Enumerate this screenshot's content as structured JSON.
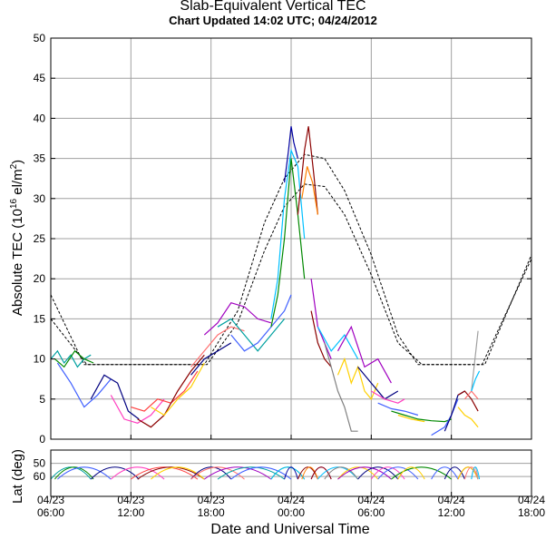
{
  "chart_data": {
    "type": "line",
    "title": "Slab-Equivalent Vertical TEC",
    "subtitle": "Chart Updated 14:02 UTC; 04/24/2012",
    "ylabel_main": "Absolute TEC (10",
    "ylabel_exp": "16",
    "ylabel_unit": " el/m",
    "ylabel_sq": "2",
    "ylabel_close": ")",
    "ylabel_lat": "Lat (deg)",
    "xlabel": "Date and Universal Time",
    "x_unit": "hours since 04/23 06:00 UTC",
    "xlim": [
      0,
      36
    ],
    "ylim": [
      0,
      50
    ],
    "y_ticks": [
      0,
      5,
      10,
      15,
      20,
      25,
      30,
      35,
      40,
      45,
      50
    ],
    "lat_ylim": [
      75,
      40
    ],
    "lat_ticks": [
      50,
      60
    ],
    "grid": true,
    "x_ticks": [
      {
        "x": 0,
        "date": "04/23",
        "time": "06:00"
      },
      {
        "x": 6,
        "date": "04/23",
        "time": "12:00"
      },
      {
        "x": 12,
        "date": "04/23",
        "time": "18:00"
      },
      {
        "x": 18,
        "date": "04/24",
        "time": "00:00"
      },
      {
        "x": 24,
        "date": "04/24",
        "time": "06:00"
      },
      {
        "x": 30,
        "date": "04/24",
        "time": "12:00"
      },
      {
        "x": 36,
        "date": "04/24",
        "time": "18:00"
      }
    ],
    "reference_curves": [
      {
        "style": "dashed",
        "x": [
          0,
          2.5,
          7,
          11.5,
          14,
          16,
          17.5,
          19,
          20.5,
          22,
          24,
          26,
          27.5,
          30,
          32.5,
          36
        ],
        "y": [
          18,
          9.3,
          9.3,
          9.3,
          16,
          27,
          32.5,
          35.5,
          35,
          31,
          23,
          13,
          9.3,
          9.3,
          9.3,
          23
        ]
      },
      {
        "style": "dashed",
        "x": [
          0,
          2.7,
          7,
          11.7,
          14,
          16,
          17.5,
          19,
          20.5,
          22,
          24,
          26,
          27.8,
          30,
          32.3,
          36
        ],
        "y": [
          15,
          9.3,
          9.3,
          9.3,
          14.5,
          23.5,
          29,
          31.8,
          31.5,
          28,
          20.5,
          12,
          9.3,
          9.3,
          9.3,
          22.5
        ]
      }
    ],
    "series": [
      {
        "color": "#00a0a0",
        "x": [
          0,
          0.5,
          1,
          1.5,
          2,
          2.5,
          3
        ],
        "y": [
          10,
          11,
          9.5,
          10.5,
          9,
          10,
          10.5
        ]
      },
      {
        "color": "#008800",
        "x": [
          0.3,
          1,
          1.8,
          2.5,
          3.2
        ],
        "y": [
          10,
          9,
          11,
          10,
          9.5
        ]
      },
      {
        "color": "#4060ff",
        "x": [
          0.5,
          1.5,
          2.5,
          3.5,
          4.5
        ],
        "y": [
          9.5,
          7,
          4,
          5.5,
          7.5
        ]
      },
      {
        "color": "#000080",
        "x": [
          3,
          4,
          5,
          5.8,
          6.6
        ],
        "y": [
          5,
          8,
          7,
          3.5,
          2.5
        ]
      },
      {
        "color": "#ff40c0",
        "x": [
          4.5,
          5.5,
          6.5,
          7.5,
          8.5
        ],
        "y": [
          5.5,
          2.5,
          2,
          3,
          5
        ]
      },
      {
        "color": "#ff4040",
        "x": [
          6,
          7,
          8,
          9,
          10,
          11
        ],
        "y": [
          4,
          3.5,
          5,
          4.5,
          6,
          8.5
        ]
      },
      {
        "color": "#8b0000",
        "x": [
          6.5,
          7.5,
          8.5,
          9.5,
          10.5,
          11.5
        ],
        "y": [
          2.5,
          1.5,
          3,
          6,
          8.5,
          10.5
        ]
      },
      {
        "color": "#ffd000",
        "x": [
          7.5,
          8.5,
          9.5,
          10.5,
          11.5
        ],
        "y": [
          4,
          3,
          5,
          6.5,
          9.5
        ]
      },
      {
        "color": "#000080",
        "x": [
          10.5,
          11.5,
          12.5,
          13.5
        ],
        "y": [
          8,
          10,
          11,
          12
        ]
      },
      {
        "color": "#ff7070",
        "x": [
          10.5,
          11.5,
          12.5,
          13.5,
          14.5
        ],
        "y": [
          9,
          11,
          13,
          14,
          13.5
        ]
      },
      {
        "color": "#a000c0",
        "x": [
          11.5,
          12.5,
          13.5,
          14.5,
          15.5,
          16.5
        ],
        "y": [
          13,
          14.5,
          17,
          16.5,
          15,
          14.5
        ]
      },
      {
        "color": "#00a0a0",
        "x": [
          12.5,
          13.5,
          14.5,
          15.5,
          16.5,
          17.5
        ],
        "y": [
          14,
          15,
          13,
          11,
          13,
          15
        ]
      },
      {
        "color": "#4060ff",
        "x": [
          13.5,
          14.5,
          15.5,
          16.5,
          17.5,
          18
        ],
        "y": [
          13,
          11,
          12,
          14,
          16,
          18
        ]
      },
      {
        "color": "#008800",
        "x": [
          16.5,
          17,
          17.5,
          18,
          18.5,
          19
        ],
        "y": [
          14,
          18,
          25,
          35,
          28,
          20
        ]
      },
      {
        "color": "#00c0ff",
        "x": [
          16.5,
          17,
          17.5,
          18,
          18.5,
          19
        ],
        "y": [
          15,
          20,
          30,
          36,
          34,
          25
        ]
      },
      {
        "color": "#0000a0",
        "x": [
          17.5,
          17.8,
          18,
          18.2,
          18.5
        ],
        "y": [
          32,
          36,
          39,
          37,
          35
        ]
      },
      {
        "color": "#8b0000",
        "x": [
          18.5,
          19,
          19.3,
          19.7,
          20
        ],
        "y": [
          28,
          36,
          39,
          33,
          28
        ]
      },
      {
        "color": "#ff8000",
        "x": [
          18.8,
          19.2,
          19.6,
          20
        ],
        "y": [
          30,
          34,
          32,
          28
        ]
      },
      {
        "color": "#a000c0",
        "x": [
          19.5,
          20,
          20.5,
          21
        ],
        "y": [
          20,
          14,
          12,
          10
        ]
      },
      {
        "color": "#8b0000",
        "x": [
          19.5,
          20,
          20.5,
          21
        ],
        "y": [
          16,
          12,
          10,
          9
        ]
      },
      {
        "color": "#00c0ff",
        "x": [
          20,
          21,
          22,
          23
        ],
        "y": [
          14,
          11,
          13,
          10
        ]
      },
      {
        "color": "#808080",
        "x": [
          20.5,
          21,
          21.5,
          22,
          22.5,
          23
        ],
        "y": [
          12,
          9,
          6,
          4,
          1,
          1
        ]
      },
      {
        "color": "#ffd000",
        "x": [
          21.5,
          22,
          22.5,
          23,
          23.5,
          24,
          24.5
        ],
        "y": [
          8,
          10,
          7,
          9,
          6,
          5,
          7
        ]
      },
      {
        "color": "#a000c0",
        "x": [
          21.5,
          22.5,
          23.5,
          24.5,
          25.5
        ],
        "y": [
          11,
          14,
          9,
          10,
          7
        ]
      },
      {
        "color": "#000080",
        "x": [
          23,
          24,
          25,
          26
        ],
        "y": [
          9,
          7,
          5,
          6
        ]
      },
      {
        "color": "#ff40c0",
        "x": [
          24,
          25,
          26,
          26.5
        ],
        "y": [
          6,
          5,
          4.5,
          5
        ]
      },
      {
        "color": "#4060ff",
        "x": [
          24.5,
          25.5,
          26.5,
          27.5
        ],
        "y": [
          4.5,
          3.8,
          3.5,
          3
        ]
      },
      {
        "color": "#008800",
        "x": [
          25.5,
          26.5,
          27.5,
          28.5,
          29.5,
          30
        ],
        "y": [
          3.5,
          3,
          2.5,
          2.3,
          2.2,
          2.5
        ]
      },
      {
        "color": "#ffd000",
        "x": [
          26,
          27,
          28
        ],
        "y": [
          3,
          2.5,
          2.2
        ]
      },
      {
        "color": "#4060ff",
        "x": [
          28.5,
          29.5,
          30,
          30.5
        ],
        "y": [
          0.5,
          1.5,
          3,
          5
        ]
      },
      {
        "color": "#000080",
        "x": [
          29.5,
          30,
          30.5,
          31
        ],
        "y": [
          1,
          3,
          5.5,
          6
        ]
      },
      {
        "color": "#8b0000",
        "x": [
          30.5,
          31,
          31.5,
          32
        ],
        "y": [
          5.5,
          6,
          5,
          3.5
        ]
      },
      {
        "color": "#ffd000",
        "x": [
          30.5,
          31,
          31.5,
          32
        ],
        "y": [
          4,
          3,
          2.5,
          1.5
        ]
      },
      {
        "color": "#ff7070",
        "x": [
          31,
          31.5,
          32
        ],
        "y": [
          5,
          6,
          5
        ]
      },
      {
        "color": "#a0a0a0",
        "x": [
          31.5,
          31.7,
          32
        ],
        "y": [
          6,
          9,
          13.5
        ]
      },
      {
        "color": "#00c0ff",
        "x": [
          31.5,
          31.8,
          32.1
        ],
        "y": [
          6,
          7.5,
          8.5
        ]
      }
    ]
  }
}
